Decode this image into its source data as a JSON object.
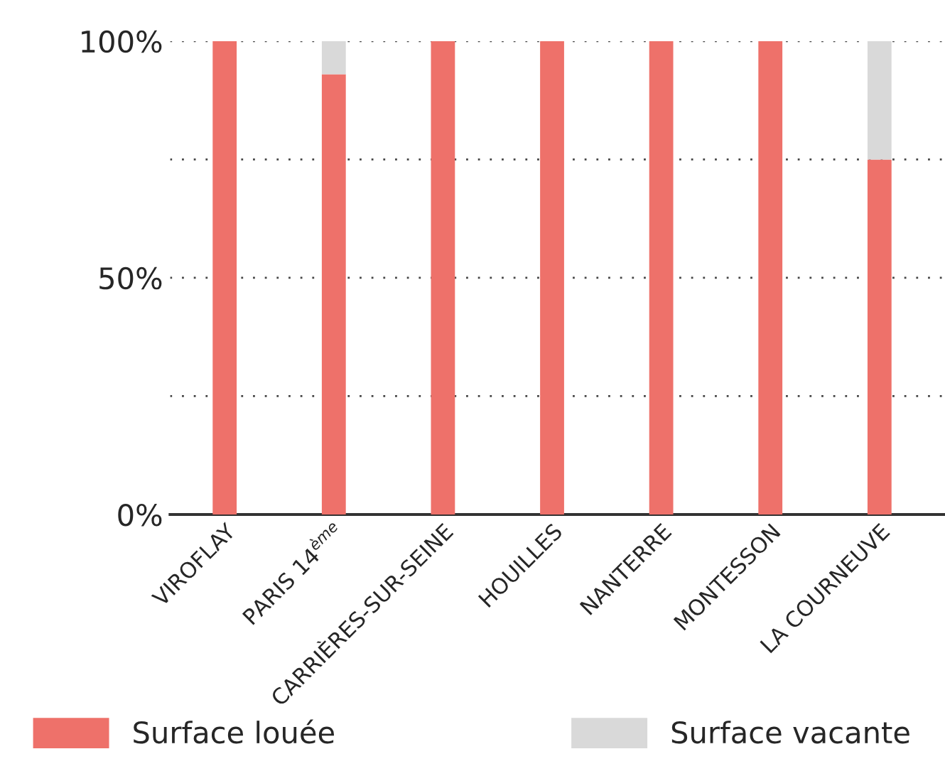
{
  "chart_data": {
    "type": "bar",
    "stacked": true,
    "categories": [
      "VIROFLAY",
      "PARIS 14$^{ème}$",
      "CARRIÈRES-SUR-SEINE",
      "HOUILLES",
      "NANTERRE",
      "MONTESSON",
      "LA COURNEUVE"
    ],
    "series": [
      {
        "name": "Surface louée",
        "color": "#ee716a",
        "values": [
          100,
          93,
          100,
          100,
          100,
          100,
          75
        ]
      },
      {
        "name": "Surface vacante",
        "color": "#d9d9d9",
        "values": [
          0,
          7,
          0,
          0,
          0,
          0,
          25
        ]
      }
    ],
    "ylim": [
      0,
      100
    ],
    "yticks": [
      {
        "value": 0,
        "label": "0%"
      },
      {
        "value": 25,
        "label": null
      },
      {
        "value": 50,
        "label": "50%"
      },
      {
        "value": 75,
        "label": null
      },
      {
        "value": 100,
        "label": "100%"
      }
    ],
    "grid": "y",
    "legend": "bottom"
  }
}
